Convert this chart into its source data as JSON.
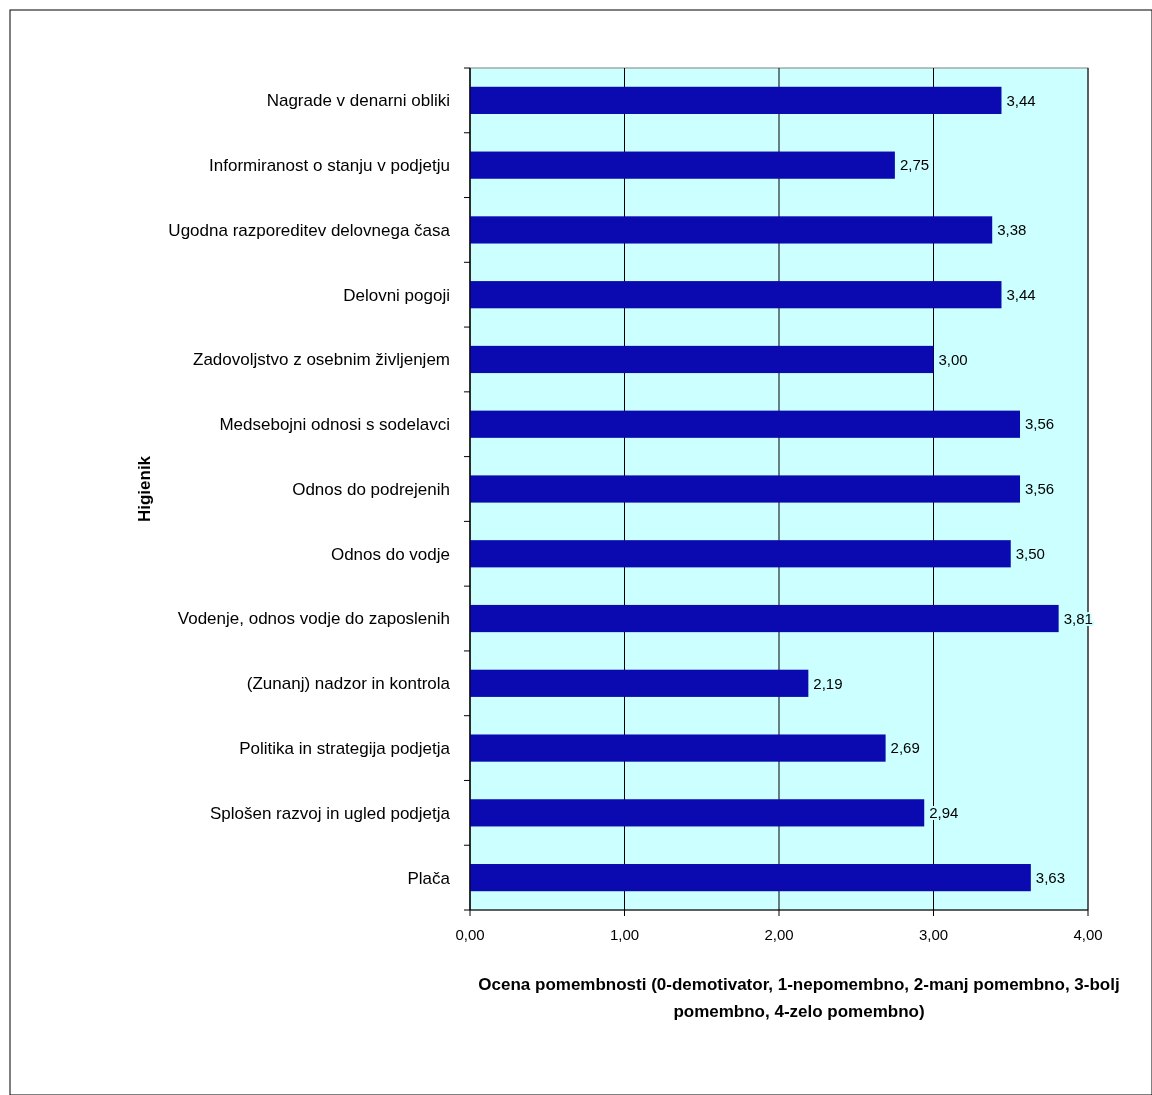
{
  "chart_data": {
    "type": "bar",
    "orientation": "horizontal",
    "ylabel": "Higienik",
    "xlabel": "Ocena pomembnosti (0-demotivator, 1-nepomembno, 2-manj pomembno, 3-bolj pomembno, 4-zelo pomembno)",
    "categories": [
      "Nagrade v denarni obliki",
      "Informiranost o stanju v podjetju",
      "Ugodna razporeditev delovnega časa",
      "Delovni pogoji",
      "Zadovoljstvo z osebnim življenjem",
      "Medsebojni odnosi s sodelavci",
      "Odnos do podrejenih",
      "Odnos do vodje",
      "Vodenje, odnos vodje do zaposlenih",
      "(Zunanj) nadzor in kontrola",
      "Politika in strategija podjetja",
      "Splošen razvoj in ugled podjetja",
      "Plača"
    ],
    "values": [
      3.44,
      2.75,
      3.38,
      3.44,
      3.0,
      3.56,
      3.56,
      3.5,
      3.81,
      2.19,
      2.69,
      2.94,
      3.63
    ],
    "value_labels": [
      "3,44",
      "2,75",
      "3,38",
      "3,44",
      "3,00",
      "3,56",
      "3,56",
      "3,50",
      "3,81",
      "2,19",
      "2,69",
      "2,94",
      "3,63"
    ],
    "color": "#0a0ab0",
    "xlim": [
      0,
      4
    ],
    "xticks": [
      {
        "value": 0,
        "label": "0,00"
      },
      {
        "value": 1,
        "label": "1,00"
      },
      {
        "value": 2,
        "label": "2,00"
      },
      {
        "value": 3,
        "label": "3,00"
      },
      {
        "value": 4,
        "label": "4,00"
      }
    ],
    "grid": "x"
  }
}
